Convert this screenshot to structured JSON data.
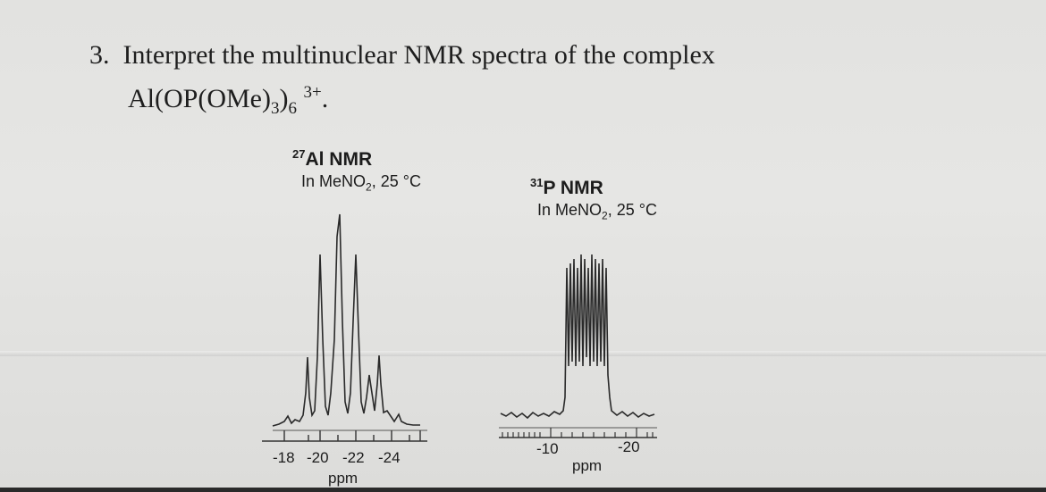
{
  "question": {
    "number": "3.",
    "line1": "Interpret the multinuclear NMR spectra of the complex",
    "formula": {
      "prefix": "Al(OP(OMe)",
      "sub1": "3",
      "mid": ")",
      "sub2": "6",
      "charge": "3+",
      "end": "."
    }
  },
  "spectra": [
    {
      "title_sup": "27",
      "title_main": "Al NMR",
      "solvent_prefix": "In MeNO",
      "solvent_sub": "2",
      "solvent_suffix": ", 25 °C",
      "ticks": [
        "-18",
        "-20",
        "-22",
        "-24"
      ],
      "unit": "ppm"
    },
    {
      "title_sup": "31",
      "title_main": "P NMR",
      "solvent_prefix": "In MeNO",
      "solvent_sub": "2",
      "solvent_suffix": ", 25 °C",
      "ticks": [
        "-10",
        "-20"
      ],
      "unit": "ppm"
    }
  ]
}
